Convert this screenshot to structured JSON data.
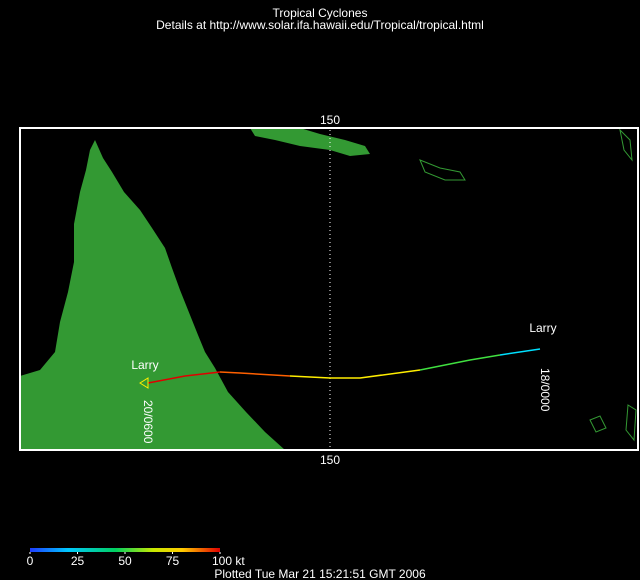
{
  "header": {
    "title": "Tropical Cyclones",
    "subtitle": "Details at http://www.solar.ifa.hawaii.edu/Tropical/tropical.html"
  },
  "map": {
    "longitude_top": "150",
    "longitude_bottom": "150",
    "storms": [
      {
        "name": "Larry",
        "time": "20/0600"
      },
      {
        "name": "Larry",
        "time": "18/0000"
      }
    ]
  },
  "colorbar": {
    "range": [
      0,
      100
    ],
    "ticks": [
      0,
      25,
      50,
      75,
      {
        "value": 100,
        "label": "100 kt"
      }
    ]
  },
  "footer": {
    "plotted": "Plotted Tue Mar 21 15:21:51 GMT 2006"
  }
}
